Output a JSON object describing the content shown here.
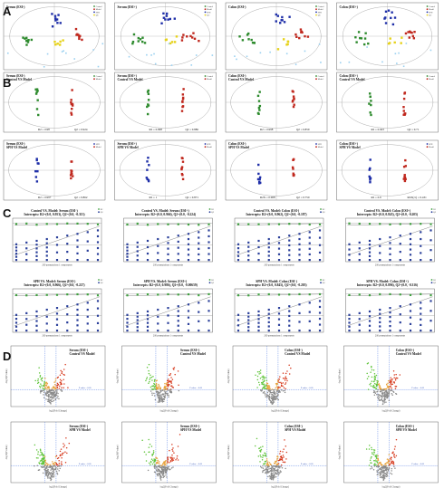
{
  "panels": {
    "A": {
      "letter": "A",
      "plots": [
        {
          "title": "Serum (ESI-)",
          "legend": [
            "Control",
            "Model",
            "SPH",
            "QC"
          ]
        },
        {
          "title": "Serum (ESI+)",
          "legend": [
            "Control",
            "Model",
            "SPH",
            "QC"
          ]
        },
        {
          "title": "Colon (ESI-)",
          "legend": [
            "Control",
            "Model",
            "SPH",
            "QC"
          ]
        },
        {
          "title": "Colon (ESI+)",
          "legend": [
            "Control",
            "Model",
            "SPH",
            "QC"
          ]
        }
      ]
    },
    "B": {
      "letter": "B",
      "plots": [
        {
          "title1": "Serum (ESI-)",
          "title2": "Control VS Model",
          "r2": "R2 = 0.98",
          "q2": "Q2 = 0.924",
          "legend": [
            "Control",
            "Model"
          ]
        },
        {
          "title1": "Serum (ESI+)",
          "title2": "Control VS Model",
          "r2": "R2 = 0.998",
          "q2": "Q2 = 0.886",
          "legend": [
            "Control",
            "Model"
          ]
        },
        {
          "title1": "Colon (ESI-)",
          "title2": "Control VS Model",
          "r2": "R2 = 0.998",
          "q2": "Q2 = 0.859",
          "legend": [
            "Control",
            "Model"
          ]
        },
        {
          "title1": "Colon (ESI+)",
          "title2": "Control VS Model",
          "r2": "R2 = 0.943",
          "q2": "Q2 = 0.71",
          "legend": [
            "Control",
            "Model"
          ]
        },
        {
          "title1": "Serum (ESI-)",
          "title2": "SPH VS Model",
          "r2": "R2 = 0.997",
          "q2": "Q2 = 0.862",
          "legend": [
            "SPH",
            "Model"
          ]
        },
        {
          "title1": "Serum (ESI+)",
          "title2": "SPH VS Model",
          "r2": "R2 = 1",
          "q2": "Q2 = 0.871",
          "legend": [
            "SPH",
            "Model"
          ]
        },
        {
          "title1": "Colon (ESI-)",
          "title2": "SPH VS Model",
          "r2": "R2X = 0.968",
          "q2": "Q2 = 0.750",
          "legend": [
            "SPH",
            "Model"
          ]
        },
        {
          "title1": "Colon (ESI+)",
          "title2": "SPH VS Model",
          "r2": "R2 = 0.9",
          "q2": "R2X(cr) = 0.431",
          "legend": [
            "SPH",
            "Model"
          ]
        }
      ]
    },
    "C": {
      "letter": "C",
      "plots": [
        {
          "title1": "Control VS. Model: Serum (ESI-)",
          "title2": "Intercepts: R2=(0.0, 0.953), Q2=(0.0, -0.313)",
          "xlabel": "200 permutations 1 components",
          "legend": [
            "R2",
            "Q2"
          ]
        },
        {
          "title1": "Control VS. Model: Serum (ESI+)",
          "title2": "Intercepts: R2=(0.0, 0.966), Q2=(0.0, -0.224)",
          "xlabel": "200 permutations 1 components",
          "legend": [
            "R2",
            "Q2"
          ]
        },
        {
          "title1": "Control VS. Model: Colon (ESI-)",
          "title2": "Intercepts: R2=(0.0, 0.962), Q2=(0.0, -0.187)",
          "xlabel": "200 permutations 1 components",
          "legend": [
            "R2",
            "Q2"
          ]
        },
        {
          "title1": "Control VS. Model: Colon (ESI+)",
          "title2": "Intercepts: R2=(0.0, 0.843), Q2=(0.0, -0.205)",
          "xlabel": "200 permutations 1 components",
          "legend": [
            "R2",
            "Q2"
          ]
        },
        {
          "title1": "SPH VS. Model: Serum (ESI-)",
          "title2": "Intercepts: R2=(0.0, 0.966), Q2=(0.0, -0.227)",
          "xlabel": "200 permutations 1 components",
          "legend": [
            "R2",
            "Q2"
          ]
        },
        {
          "title1": "SPH VS. Model: Serum (ESI+)",
          "title2": "Intercepts: R2=(0.0, 0.986), Q2=(0.0, -0.00659)",
          "xlabel": "200 permutations 1 components",
          "legend": [
            "R2",
            "Q2"
          ]
        },
        {
          "title1": "SPH VS. Model: Colon (ESI-)",
          "title2": "Intercepts: R2=(0.0, 0.845), Q2=(0.0, -0.205)",
          "xlabel": "200 permutations 1 components",
          "legend": [
            "R2",
            "Q2"
          ]
        },
        {
          "title1": "SPH VS. Model: Colon (ESI+)",
          "title2": "Intercepts: R2=(0.0, 0.896), Q2=(0.0, -0.316)",
          "xlabel": "200 permutations 1 components",
          "legend": [
            "R2",
            "Q2"
          ]
        }
      ]
    },
    "D": {
      "letter": "D",
      "xlabel": "log2(Fold Change)",
      "ylabel": "-log10(P value)",
      "pline": "P value = 0.05",
      "plots": [
        {
          "title1": "Serum (ESI-)",
          "title2": "Control VS Model"
        },
        {
          "title1": "Serum (ESI+)",
          "title2": "Control VS Model"
        },
        {
          "title1": "Colon (ESI-)",
          "title2": "Control VS Model"
        },
        {
          "title1": "Colon (ESI+)",
          "title2": "Control VS Model"
        },
        {
          "title1": "Serum (ESI-)",
          "title2": "SPH VS Model"
        },
        {
          "title1": "Serum (ESI+)",
          "title2": "SPH VS Model"
        },
        {
          "title1": "Colon (ESI-)",
          "title2": "SPH VS Model"
        },
        {
          "title1": "Colon (ESI+)",
          "title2": "SPH VS Model"
        }
      ]
    }
  },
  "colors": {
    "control": "#2e8b2e",
    "model": "#c0281e",
    "sph": "#1f2fa8",
    "qc": "#e6d21a",
    "qc2": "#9ad0f0",
    "r2": "#3fa13f",
    "q2": "#2a3f9a",
    "up": "#d63a1e",
    "down": "#5fc43a",
    "ns": "#8a8a8a",
    "mid": "#e8a23a"
  },
  "chart_data": [
    {
      "type": "scatter",
      "title": "Serum (ESI-)",
      "series": [
        {
          "name": "Control"
        },
        {
          "name": "Model"
        },
        {
          "name": "SPH"
        },
        {
          "name": "QC"
        }
      ]
    },
    {
      "type": "scatter",
      "title": "Serum (ESI+)",
      "series": [
        {
          "name": "Control"
        },
        {
          "name": "Model"
        },
        {
          "name": "SPH"
        },
        {
          "name": "QC"
        }
      ]
    },
    {
      "type": "scatter",
      "title": "Colon (ESI-)",
      "series": [
        {
          "name": "Control"
        },
        {
          "name": "Model"
        },
        {
          "name": "SPH"
        },
        {
          "name": "QC"
        }
      ]
    },
    {
      "type": "scatter",
      "title": "Colon (ESI+)",
      "series": [
        {
          "name": "Control"
        },
        {
          "name": "Model"
        },
        {
          "name": "SPH"
        },
        {
          "name": "QC"
        }
      ]
    },
    {
      "type": "scatter",
      "title": "Serum (ESI-) Control VS Model",
      "R2": 0.98,
      "Q2": 0.924
    },
    {
      "type": "scatter",
      "title": "Serum (ESI+) Control VS Model",
      "R2": 0.998,
      "Q2": 0.886
    },
    {
      "type": "scatter",
      "title": "Colon (ESI-) Control VS Model",
      "R2": 0.998,
      "Q2": 0.859
    },
    {
      "type": "scatter",
      "title": "Colon (ESI+) Control VS Model",
      "R2": 0.943,
      "Q2": 0.71
    },
    {
      "type": "scatter",
      "title": "Serum (ESI-) SPH VS Model",
      "R2": 0.997,
      "Q2": 0.862
    },
    {
      "type": "scatter",
      "title": "Serum (ESI+) SPH VS Model",
      "R2": 1,
      "Q2": 0.871
    },
    {
      "type": "scatter",
      "title": "Colon (ESI-) SPH VS Model",
      "R2X": 0.968,
      "Q2": 0.75
    },
    {
      "type": "scatter",
      "title": "Colon (ESI+) SPH VS Model",
      "R2": 0.9,
      "R2X_cr": 0.431
    },
    {
      "type": "scatter",
      "title": "Control VS. Model: Serum (ESI-)",
      "intercepts": {
        "R2": [
          0.0,
          0.953
        ],
        "Q2": [
          0.0,
          -0.313
        ]
      }
    },
    {
      "type": "scatter",
      "title": "Control VS. Model: Serum (ESI+)",
      "intercepts": {
        "R2": [
          0.0,
          0.966
        ],
        "Q2": [
          0.0,
          -0.224
        ]
      }
    },
    {
      "type": "scatter",
      "title": "Control VS. Model: Colon (ESI-)",
      "intercepts": {
        "R2": [
          0.0,
          0.962
        ],
        "Q2": [
          0.0,
          -0.187
        ]
      }
    },
    {
      "type": "scatter",
      "title": "Control VS. Model: Colon (ESI+)",
      "intercepts": {
        "R2": [
          0.0,
          0.843
        ],
        "Q2": [
          0.0,
          -0.205
        ]
      }
    },
    {
      "type": "scatter",
      "title": "SPH VS. Model: Serum (ESI-)",
      "intercepts": {
        "R2": [
          0.0,
          0.966
        ],
        "Q2": [
          0.0,
          -0.227
        ]
      }
    },
    {
      "type": "scatter",
      "title": "SPH VS. Model: Serum (ESI+)",
      "intercepts": {
        "R2": [
          0.0,
          0.986
        ],
        "Q2": [
          0.0,
          -0.00659
        ]
      }
    },
    {
      "type": "scatter",
      "title": "SPH VS. Model: Colon (ESI-)",
      "intercepts": {
        "R2": [
          0.0,
          0.845
        ],
        "Q2": [
          0.0,
          -0.205
        ]
      }
    },
    {
      "type": "scatter",
      "title": "SPH VS. Model: Colon (ESI+)",
      "intercepts": {
        "R2": [
          0.0,
          0.896
        ],
        "Q2": [
          0.0,
          -0.316
        ]
      }
    },
    {
      "type": "scatter",
      "title": "Volcano plots",
      "xlabel": "log2(Fold Change)",
      "ylabel": "-log10(P value)",
      "threshold": "P value = 0.05"
    }
  ]
}
